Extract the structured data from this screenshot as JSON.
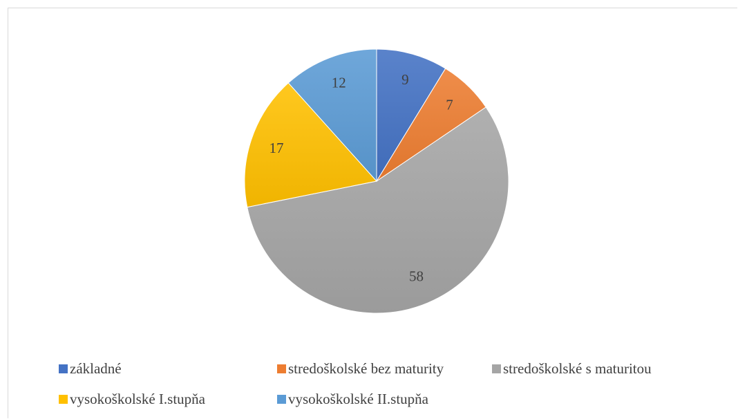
{
  "chart_data": {
    "type": "pie",
    "title": "",
    "slices": [
      {
        "label": "základné",
        "value": 9,
        "color": "#4472c4"
      },
      {
        "label": "stredoškolské bez maturity",
        "value": 7,
        "color": "#ed7d31"
      },
      {
        "label": "stredoškolské s maturitou",
        "value": 58,
        "color": "#a5a5a5"
      },
      {
        "label": "vysokoškolské I.stupňa",
        "value": 17,
        "color": "#ffc000"
      },
      {
        "label": "vysokoškolské II.stupňa",
        "value": 12,
        "color": "#5b9bd5"
      }
    ],
    "start_angle": "top, clockwise",
    "data_labels": true,
    "legend_position": "bottom"
  }
}
